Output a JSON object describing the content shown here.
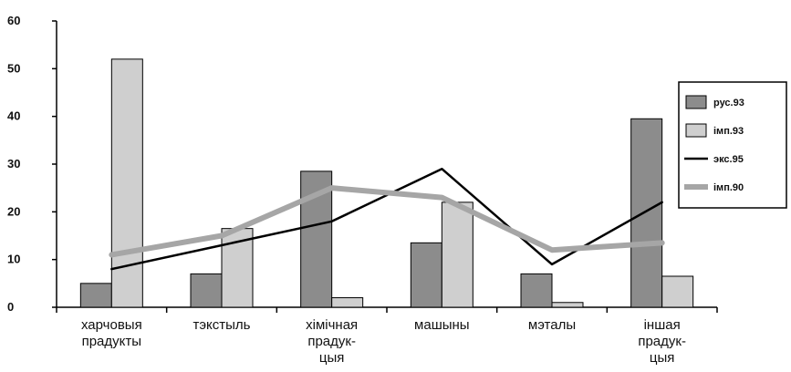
{
  "chart_data": {
    "type": "bar",
    "categories": [
      [
        "харчовыя",
        "прадукты"
      ],
      [
        "тэкстыль"
      ],
      [
        "хімічная",
        "прадук-",
        "цыя"
      ],
      [
        "машыны"
      ],
      [
        "мэталы"
      ],
      [
        "іншая",
        "прадук-",
        "цыя"
      ]
    ],
    "ylim": [
      0,
      60
    ],
    "yticks": [
      "0",
      "10",
      "20",
      "30",
      "40",
      "50",
      "60"
    ],
    "series": [
      {
        "name": "рус.93",
        "type": "bar",
        "color": "#8c8c8c",
        "values": [
          5,
          7,
          28.5,
          13.5,
          7,
          39.5
        ]
      },
      {
        "name": "імп.93",
        "type": "bar",
        "color": "#cfcfcf",
        "values": [
          52,
          16.5,
          2,
          22,
          1,
          6.5
        ]
      },
      {
        "name": "экс.95",
        "type": "line",
        "color": "#000000",
        "values": [
          8,
          13,
          18,
          29,
          9,
          22
        ]
      },
      {
        "name": "імп.90",
        "type": "line",
        "color": "#a6a6a6",
        "values": [
          11,
          15,
          25,
          23,
          12,
          13.5
        ]
      }
    ],
    "grid": false,
    "legend": "right"
  }
}
